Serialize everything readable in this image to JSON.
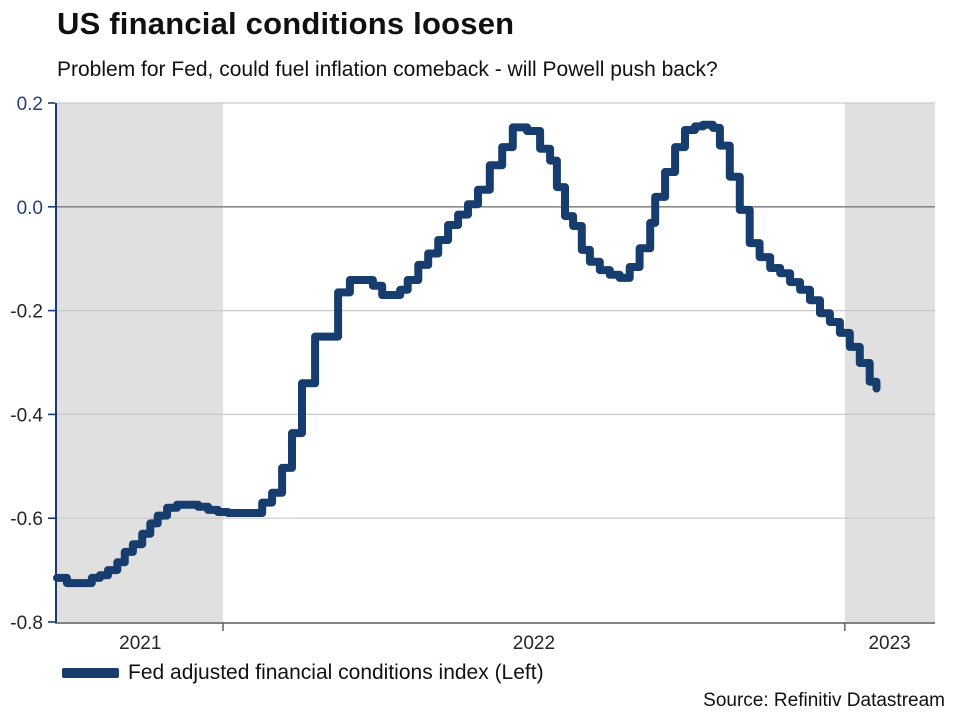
{
  "page": {
    "title": "US financial conditions loosen",
    "subtitle": "Problem for Fed, could fuel inflation comeback - will Powell push back?",
    "source": "Source: Refinitiv Datastream"
  },
  "legend": {
    "label": "Fed adjusted financial conditions index (Left)"
  },
  "colors": {
    "line": "#163d6d",
    "left_axis": "#163d6d",
    "bottom_axis": "#595959",
    "year_band": "#e0e0e0",
    "grid": "#c9c9c9",
    "zero_line": "#8a8a8a",
    "tick_label_nonnegative": "#1f4377",
    "tick_label_negative": "#262626",
    "x_label": "#262626"
  },
  "chart_data": {
    "type": "line",
    "step": true,
    "title": "US financial conditions loosen",
    "xlabel": "",
    "ylabel": "",
    "x_range": [
      2021.733,
      2023.145
    ],
    "ylim": [
      -0.8,
      0.2
    ],
    "y_ticks": [
      0.2,
      0.0,
      -0.2,
      -0.4,
      -0.6,
      -0.8
    ],
    "x_tick_marks": [
      2022,
      2023
    ],
    "x_tick_labels": [
      {
        "label": "2021",
        "pos": 2021.867
      },
      {
        "label": "2022",
        "pos": 2022.5
      },
      {
        "label": "2023",
        "pos": 2023.072
      }
    ],
    "shaded_year_bands": [
      [
        2021.733,
        2022.0
      ],
      [
        2023.0,
        2023.145
      ]
    ],
    "grid": true,
    "legend_position": "bottom-left",
    "series": [
      {
        "name": "Fed adjusted financial conditions index (Left)",
        "points": [
          [
            2021.733,
            -0.715
          ],
          [
            2021.749,
            -0.725
          ],
          [
            2021.789,
            -0.715
          ],
          [
            2021.802,
            -0.71
          ],
          [
            2021.815,
            -0.7
          ],
          [
            2021.83,
            -0.685
          ],
          [
            2021.842,
            -0.665
          ],
          [
            2021.855,
            -0.65
          ],
          [
            2021.87,
            -0.63
          ],
          [
            2021.883,
            -0.61
          ],
          [
            2021.895,
            -0.595
          ],
          [
            2021.91,
            -0.58
          ],
          [
            2021.926,
            -0.574
          ],
          [
            2021.96,
            -0.578
          ],
          [
            2021.976,
            -0.584
          ],
          [
            2021.992,
            -0.588
          ],
          [
            2022.008,
            -0.59
          ],
          [
            2022.063,
            -0.57
          ],
          [
            2022.079,
            -0.551
          ],
          [
            2022.095,
            -0.503
          ],
          [
            2022.111,
            -0.436
          ],
          [
            2022.127,
            -0.34
          ],
          [
            2022.148,
            -0.25
          ],
          [
            2022.185,
            -0.165
          ],
          [
            2022.204,
            -0.141
          ],
          [
            2022.241,
            -0.152
          ],
          [
            2022.256,
            -0.17
          ],
          [
            2022.285,
            -0.16
          ],
          [
            2022.297,
            -0.141
          ],
          [
            2022.314,
            -0.112
          ],
          [
            2022.33,
            -0.09
          ],
          [
            2022.346,
            -0.064
          ],
          [
            2022.362,
            -0.035
          ],
          [
            2022.378,
            -0.015
          ],
          [
            2022.394,
            0.005
          ],
          [
            2022.41,
            0.033
          ],
          [
            2022.429,
            0.08
          ],
          [
            2022.449,
            0.115
          ],
          [
            2022.466,
            0.153
          ],
          [
            2022.489,
            0.146
          ],
          [
            2022.51,
            0.112
          ],
          [
            2022.526,
            0.089
          ],
          [
            2022.537,
            0.038
          ],
          [
            2022.55,
            -0.018
          ],
          [
            2022.563,
            -0.037
          ],
          [
            2022.577,
            -0.083
          ],
          [
            2022.59,
            -0.106
          ],
          [
            2022.606,
            -0.122
          ],
          [
            2022.622,
            -0.131
          ],
          [
            2022.638,
            -0.137
          ],
          [
            2022.654,
            -0.116
          ],
          [
            2022.67,
            -0.08
          ],
          [
            2022.687,
            -0.031
          ],
          [
            2022.695,
            0.019
          ],
          [
            2022.711,
            0.067
          ],
          [
            2022.727,
            0.115
          ],
          [
            2022.743,
            0.148
          ],
          [
            2022.759,
            0.155
          ],
          [
            2022.772,
            0.158
          ],
          [
            2022.788,
            0.152
          ],
          [
            2022.799,
            0.118
          ],
          [
            2022.815,
            0.058
          ],
          [
            2022.831,
            -0.006
          ],
          [
            2022.847,
            -0.07
          ],
          [
            2022.863,
            -0.097
          ],
          [
            2022.88,
            -0.118
          ],
          [
            2022.896,
            -0.128
          ],
          [
            2022.912,
            -0.145
          ],
          [
            2022.928,
            -0.16
          ],
          [
            2022.944,
            -0.18
          ],
          [
            2022.96,
            -0.205
          ],
          [
            2022.976,
            -0.222
          ],
          [
            2022.992,
            -0.243
          ],
          [
            2023.008,
            -0.27
          ],
          [
            2023.024,
            -0.301
          ],
          [
            2023.04,
            -0.337
          ],
          [
            2023.051,
            -0.35
          ]
        ]
      }
    ]
  }
}
